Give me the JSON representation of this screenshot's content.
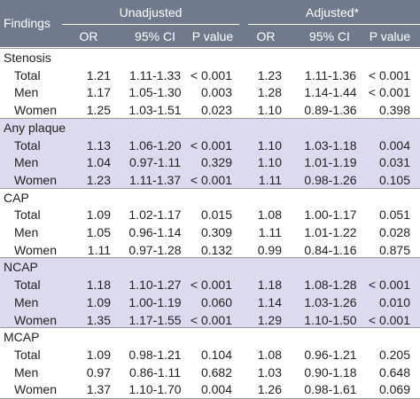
{
  "header": {
    "title": "Findings",
    "groups": [
      "Unadjusted",
      "Adjusted*"
    ],
    "columns": [
      "OR",
      "95% CI",
      "P value",
      "OR",
      "95% CI",
      "P value"
    ]
  },
  "sections": [
    {
      "title": "Stenosis",
      "rows": [
        {
          "label": "Total",
          "cells": [
            "1.21",
            "1.11-1.33",
            "< 0.001",
            "1.23",
            "1.11-1.36",
            "< 0.001"
          ]
        },
        {
          "label": "Men",
          "cells": [
            "1.17",
            "1.05-1.30",
            "0.003",
            "1.28",
            "1.14-1.44",
            "< 0.001"
          ]
        },
        {
          "label": "Women",
          "cells": [
            "1.25",
            "1.03-1.51",
            "0.023",
            "1.10",
            "0.89-1.36",
            "0.398"
          ]
        }
      ]
    },
    {
      "title": "Any plaque",
      "rows": [
        {
          "label": "Total",
          "cells": [
            "1.13",
            "1.06-1.20",
            "< 0.001",
            "1.10",
            "1.03-1.18",
            "0.004"
          ]
        },
        {
          "label": "Men",
          "cells": [
            "1.04",
            "0.97-1.11",
            "0.329",
            "1.10",
            "1.01-1.19",
            "0.031"
          ]
        },
        {
          "label": "Women",
          "cells": [
            "1.23",
            "1.11-1.37",
            "< 0.001",
            "1.11",
            "0.98-1.26",
            "0.105"
          ]
        }
      ]
    },
    {
      "title": "CAP",
      "rows": [
        {
          "label": "Total",
          "cells": [
            "1.09",
            "1.02-1.17",
            "0.015",
            "1.08",
            "1.00-1.17",
            "0.051"
          ]
        },
        {
          "label": "Men",
          "cells": [
            "1.05",
            "0.96-1.14",
            "0.309",
            "1.11",
            "1.01-1.22",
            "0.028"
          ]
        },
        {
          "label": "Women",
          "cells": [
            "1.11",
            "0.97-1.28",
            "0.132",
            "0.99",
            "0.84-1.16",
            "0.875"
          ]
        }
      ]
    },
    {
      "title": "NCAP",
      "rows": [
        {
          "label": "Total",
          "cells": [
            "1.18",
            "1.10-1.27",
            "< 0.001",
            "1.18",
            "1.08-1.28",
            "< 0.001"
          ]
        },
        {
          "label": "Men",
          "cells": [
            "1.09",
            "1.00-1.19",
            "0.060",
            "1.14",
            "1.03-1.26",
            "0.010"
          ]
        },
        {
          "label": "Women",
          "cells": [
            "1.35",
            "1.17-1.55",
            "< 0.001",
            "1.29",
            "1.10-1.50",
            "< 0.001"
          ]
        }
      ]
    },
    {
      "title": "MCAP",
      "rows": [
        {
          "label": "Total",
          "cells": [
            "1.09",
            "0.98-1.21",
            "0.104",
            "1.08",
            "0.96-1.21",
            "0.205"
          ]
        },
        {
          "label": "Men",
          "cells": [
            "0.97",
            "0.86-1.11",
            "0.682",
            "1.03",
            "0.90-1.18",
            "0.648"
          ]
        },
        {
          "label": "Women",
          "cells": [
            "1.37",
            "1.10-1.70",
            "0.004",
            "1.26",
            "0.98-1.61",
            "0.069"
          ]
        }
      ]
    }
  ]
}
